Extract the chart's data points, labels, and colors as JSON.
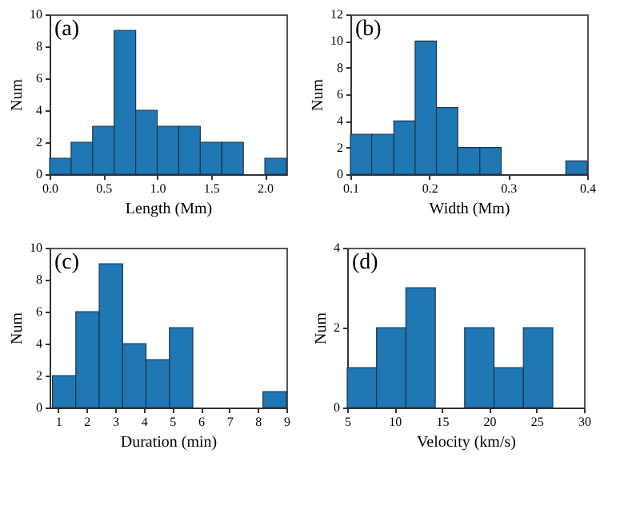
{
  "chart_data": [
    {
      "type": "histogram",
      "title": "(a)",
      "xlabel": "Length (Mm)",
      "ylabel": "Num",
      "color": "#1f77b4",
      "bins": [
        0,
        0.2,
        0.4,
        0.6,
        0.8,
        1.0,
        1.2,
        1.4,
        1.6,
        1.8,
        2.0,
        2.2
      ],
      "values": [
        1,
        2,
        3,
        9,
        4,
        3,
        3,
        2,
        2,
        0,
        1
      ],
      "xlim": [
        0,
        2.2
      ],
      "xticks": [
        {
          "value": 0,
          "label": "0.0"
        },
        0.5,
        {
          "value": 1,
          "label": "1.0"
        },
        1.5,
        {
          "value": 2,
          "label": "2.0"
        }
      ],
      "ylim": [
        0,
        10
      ],
      "yticks": [
        0,
        2,
        4,
        6,
        8,
        10
      ],
      "grid": false
    },
    {
      "type": "histogram",
      "title": "(b)",
      "xlabel": "Width (Mm)",
      "ylabel": "Num",
      "color": "#1f77b4",
      "bins": [
        0.1,
        0.127,
        0.155,
        0.182,
        0.209,
        0.236,
        0.264,
        0.291,
        0.373,
        0.4
      ],
      "values": [
        3,
        3,
        4,
        10,
        5,
        2,
        2,
        0,
        1
      ],
      "xlim": [
        0.1,
        0.4
      ],
      "xticks": [
        0.1,
        0.2,
        0.3,
        0.4
      ],
      "ylim": [
        0,
        12
      ],
      "yticks": [
        0,
        2,
        4,
        6,
        8,
        10,
        12
      ],
      "grid": false
    },
    {
      "type": "histogram",
      "title": "(c)",
      "xlabel": "Duration (min)",
      "ylabel": "Num",
      "color": "#1f77b4",
      "bins": [
        0.8,
        1.62,
        2.44,
        3.26,
        4.08,
        4.9,
        5.72,
        6.54,
        7.36,
        8.18,
        9.0
      ],
      "values": [
        2,
        6,
        9,
        4,
        3,
        5,
        0,
        0,
        0,
        1
      ],
      "xlim": [
        0.7,
        9
      ],
      "xticks": [
        1,
        2,
        3,
        4,
        5,
        6,
        7,
        8,
        9
      ],
      "ylim": [
        0,
        10
      ],
      "yticks": [
        0,
        2,
        4,
        6,
        8,
        10
      ],
      "grid": false
    },
    {
      "type": "histogram",
      "title": "(d)",
      "xlabel": "Velocity (km/s)",
      "ylabel": "Num",
      "color": "#1f77b4",
      "bins": [
        5,
        8.1,
        11.2,
        14.3,
        17.4,
        20.5,
        23.6,
        26.7
      ],
      "values": [
        1,
        2,
        3,
        0,
        2,
        1,
        2
      ],
      "xlim": [
        5,
        30
      ],
      "xticks": [
        5,
        10,
        15,
        20,
        25,
        30
      ],
      "ylim": [
        0,
        4
      ],
      "yticks": [
        0,
        2,
        4
      ],
      "grid": false
    }
  ]
}
